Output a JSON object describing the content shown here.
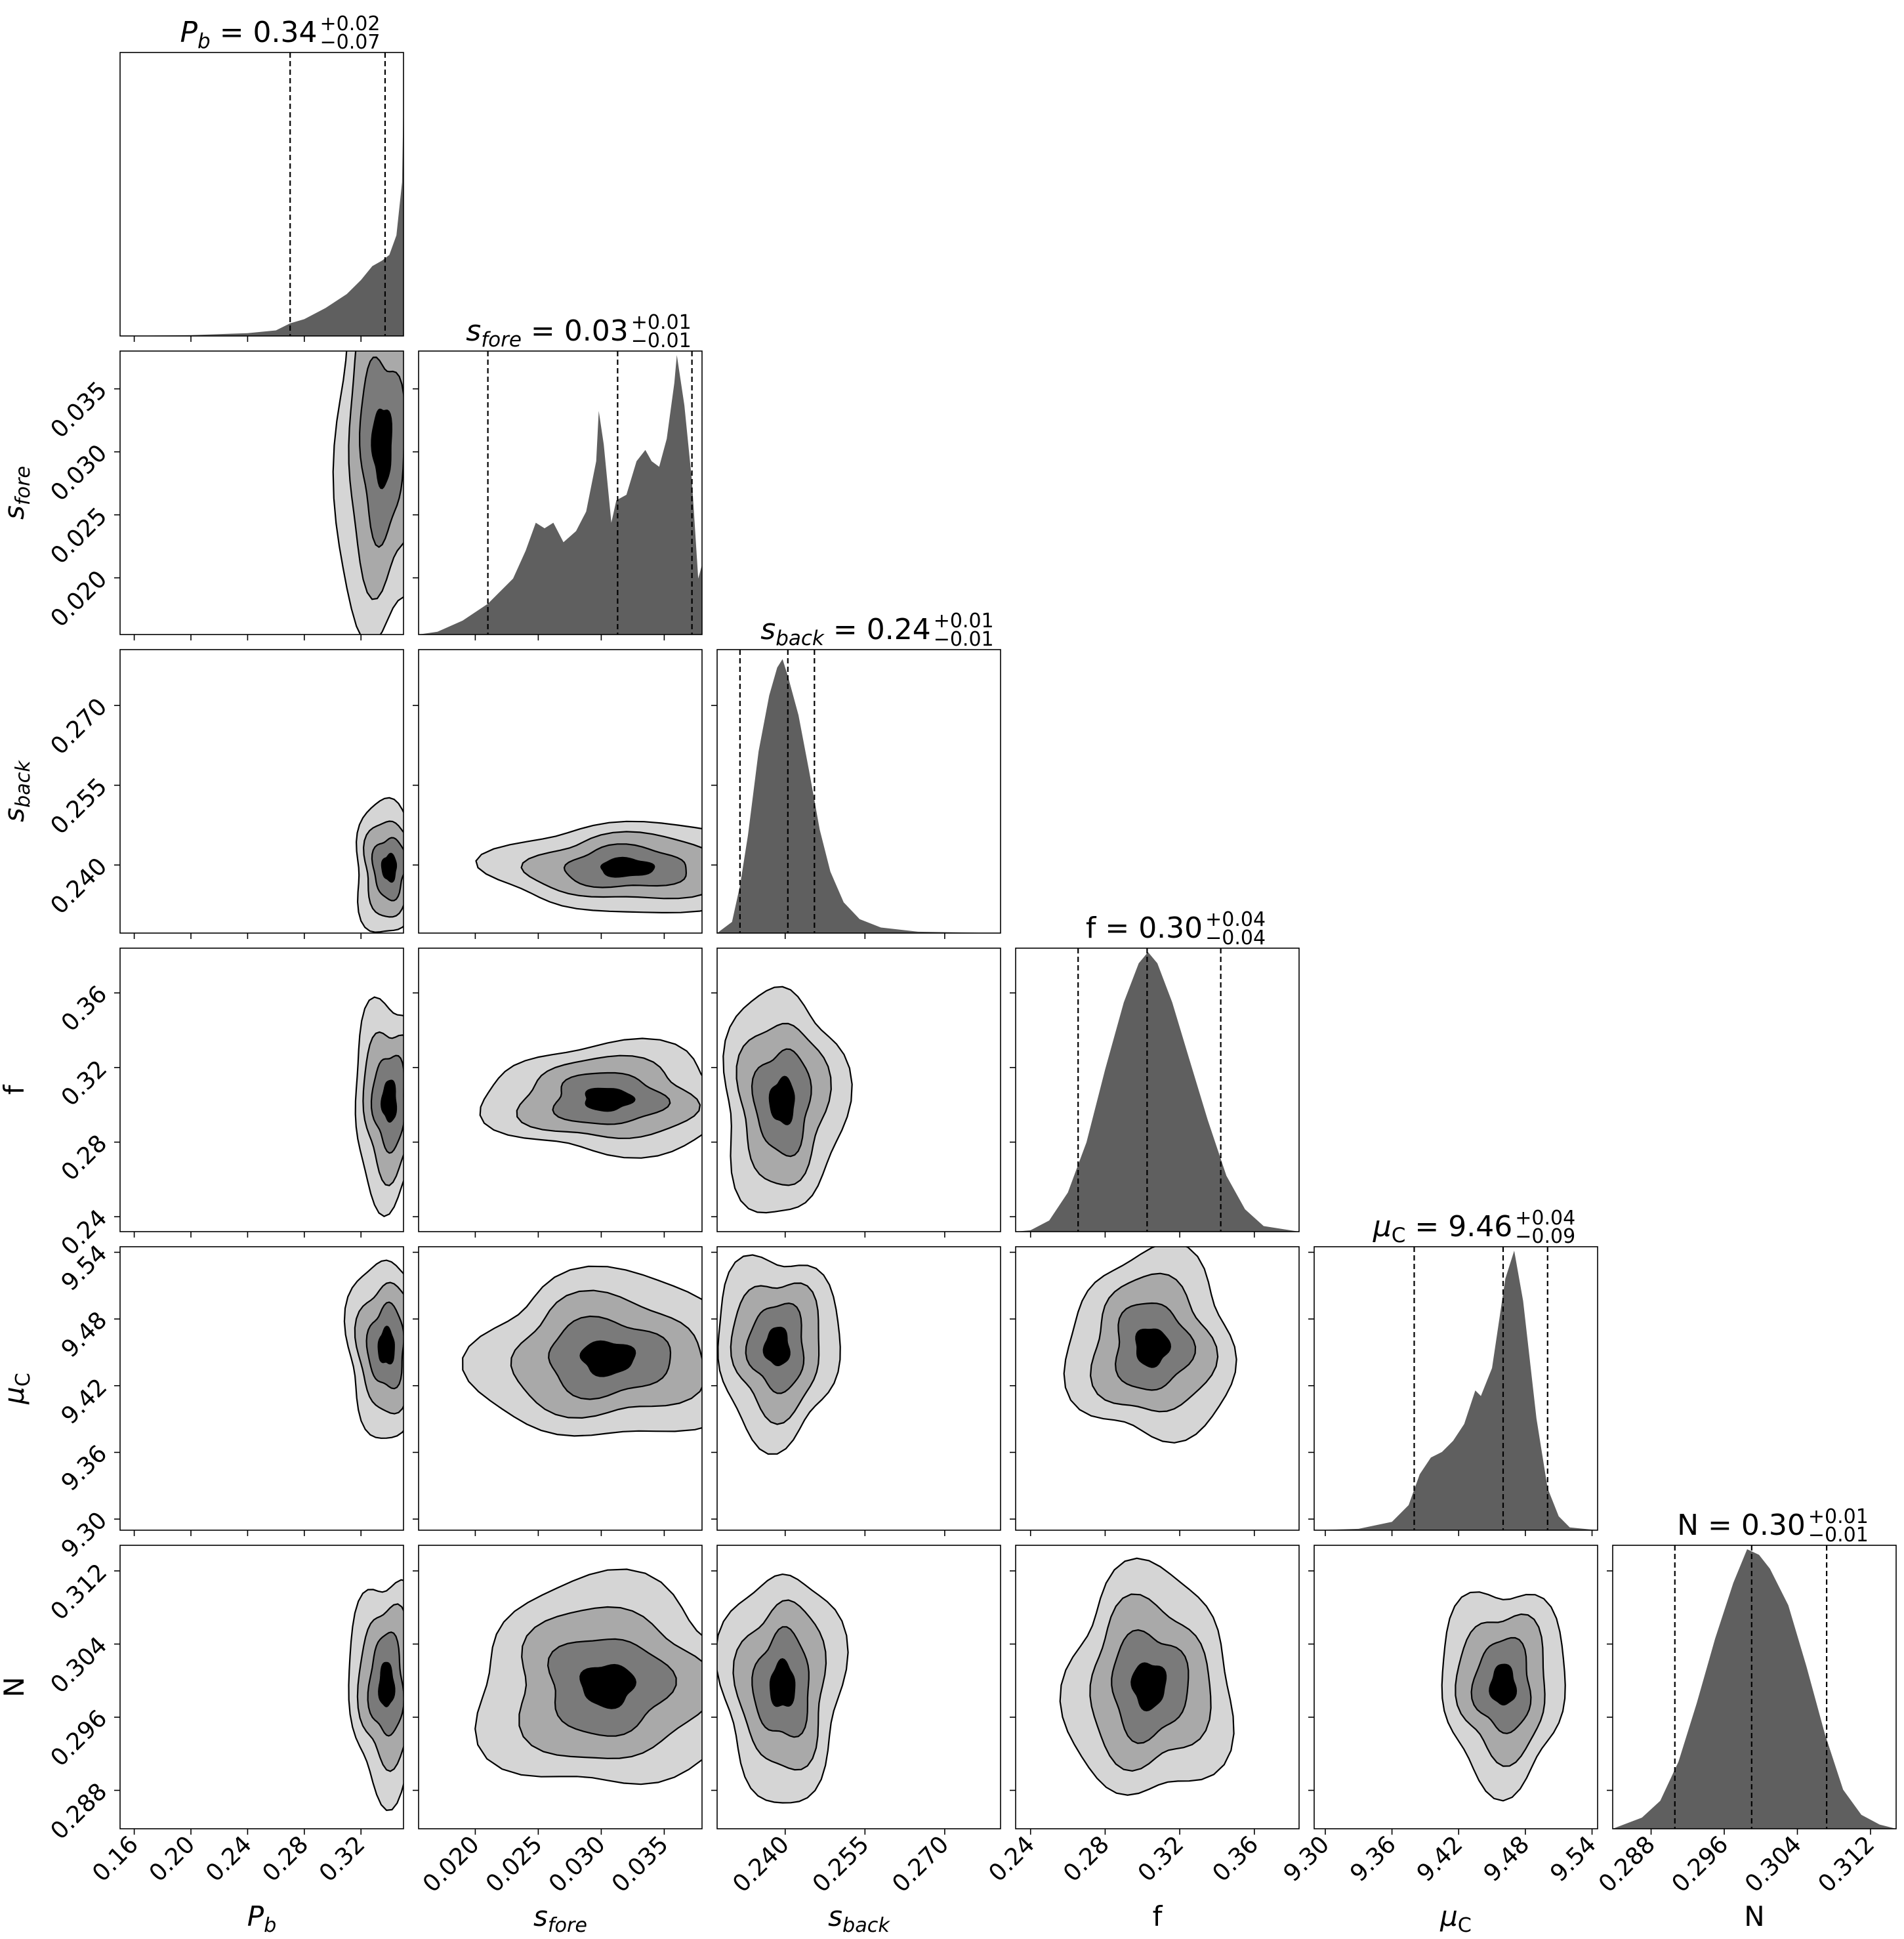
{
  "chart_data": {
    "type": "corner",
    "description_labels": "Posterior corner plot of 6 parameters with 1D marginal histograms on the diagonal and 2D contour densities below.",
    "parameters": [
      {
        "key": "Pb",
        "label_base": "P",
        "label_sub": "b",
        "title_base": "P",
        "title_sub": "b",
        "median": "0.34",
        "plus": "+0.02",
        "minus": "−0.07",
        "range": [
          0.15,
          0.35
        ],
        "ticks": [
          0.16,
          0.2,
          0.24,
          0.28,
          0.32
        ],
        "tick_labels": [
          "0.16",
          "0.20",
          "0.24",
          "0.28",
          "0.32"
        ],
        "quantiles": [
          0.27,
          0.337,
          0.357
        ]
      },
      {
        "key": "sfore",
        "label_base": "s",
        "label_sub": "fore",
        "title_base": "s",
        "title_sub": "fore",
        "median": "0.03",
        "plus": "+0.01",
        "minus": "−0.01",
        "range": [
          0.0155,
          0.038
        ],
        "ticks": [
          0.02,
          0.025,
          0.03,
          0.035
        ],
        "tick_labels": [
          "0.020",
          "0.025",
          "0.030",
          "0.035"
        ],
        "quantiles": [
          0.021,
          0.0313,
          0.0372
        ]
      },
      {
        "key": "sback",
        "label_base": "s",
        "label_sub": "back",
        "title_base": "s",
        "title_sub": "back",
        "median": "0.24",
        "plus": "+0.01",
        "minus": "−0.01",
        "range": [
          0.2272,
          0.2805
        ],
        "ticks": [
          0.24,
          0.255,
          0.27
        ],
        "tick_labels": [
          "0.240",
          "0.255",
          "0.270"
        ],
        "quantiles": [
          0.2315,
          0.2405,
          0.2455
        ]
      },
      {
        "key": "f",
        "label_base": "f",
        "label_sub": "",
        "title_base": "f",
        "title_sub": "",
        "median": "0.30",
        "plus": "+0.04",
        "minus": "−0.04",
        "range": [
          0.232,
          0.384
        ],
        "ticks": [
          0.24,
          0.28,
          0.32,
          0.36
        ],
        "tick_labels": [
          "0.24",
          "0.28",
          "0.32",
          "0.36"
        ],
        "quantiles": [
          0.2655,
          0.3025,
          0.342
        ]
      },
      {
        "key": "muC",
        "label_base": "μ",
        "label_sub": "C",
        "title_base": "μ",
        "title_sub": "C",
        "median": "9.46",
        "plus": "+0.04",
        "minus": "−0.09",
        "range": [
          9.29,
          9.545
        ],
        "ticks": [
          9.3,
          9.36,
          9.42,
          9.48,
          9.54
        ],
        "tick_labels": [
          "9.30",
          "9.36",
          "9.42",
          "9.48",
          "9.54"
        ],
        "quantiles": [
          9.38,
          9.46,
          9.5
        ]
      },
      {
        "key": "N",
        "label_base": "N",
        "label_sub": "",
        "title_base": "N",
        "title_sub": "",
        "median": "0.30",
        "plus": "+0.01",
        "minus": "−0.01",
        "range": [
          0.2838,
          0.3148
        ],
        "ticks": [
          0.288,
          0.296,
          0.304,
          0.312
        ],
        "tick_labels": [
          "0.288",
          "0.296",
          "0.304",
          "0.312"
        ],
        "quantiles": [
          0.2906,
          0.299,
          0.3072
        ]
      }
    ],
    "histograms": {
      "Pb": [
        [
          0.15,
          0
        ],
        [
          0.2,
          0.003
        ],
        [
          0.24,
          0.01
        ],
        [
          0.26,
          0.02
        ],
        [
          0.27,
          0.045
        ],
        [
          0.28,
          0.06
        ],
        [
          0.295,
          0.1
        ],
        [
          0.31,
          0.15
        ],
        [
          0.32,
          0.2
        ],
        [
          0.328,
          0.25
        ],
        [
          0.335,
          0.27
        ],
        [
          0.34,
          0.29
        ],
        [
          0.345,
          0.36
        ],
        [
          0.349,
          0.55
        ],
        [
          0.3505,
          1.0
        ]
      ],
      "sfore": [
        [
          0.0155,
          0
        ],
        [
          0.017,
          0.01
        ],
        [
          0.019,
          0.05
        ],
        [
          0.021,
          0.11
        ],
        [
          0.023,
          0.2
        ],
        [
          0.024,
          0.3
        ],
        [
          0.0248,
          0.4
        ],
        [
          0.0255,
          0.38
        ],
        [
          0.0262,
          0.4
        ],
        [
          0.027,
          0.33
        ],
        [
          0.028,
          0.37
        ],
        [
          0.0288,
          0.44
        ],
        [
          0.0296,
          0.62
        ],
        [
          0.0298,
          0.8
        ],
        [
          0.0302,
          0.68
        ],
        [
          0.0308,
          0.4
        ],
        [
          0.0312,
          0.48
        ],
        [
          0.032,
          0.5
        ],
        [
          0.0328,
          0.62
        ],
        [
          0.0335,
          0.66
        ],
        [
          0.034,
          0.62
        ],
        [
          0.0346,
          0.6
        ],
        [
          0.0352,
          0.7
        ],
        [
          0.0358,
          0.9
        ],
        [
          0.036,
          1.0
        ],
        [
          0.0366,
          0.82
        ],
        [
          0.0372,
          0.55
        ],
        [
          0.0377,
          0.2
        ],
        [
          0.038,
          0.25
        ]
      ],
      "sback": [
        [
          0.2272,
          0
        ],
        [
          0.23,
          0.04
        ],
        [
          0.2315,
          0.17
        ],
        [
          0.233,
          0.35
        ],
        [
          0.235,
          0.65
        ],
        [
          0.237,
          0.85
        ],
        [
          0.2385,
          0.95
        ],
        [
          0.2395,
          0.98
        ],
        [
          0.2405,
          0.92
        ],
        [
          0.2425,
          0.78
        ],
        [
          0.2445,
          0.58
        ],
        [
          0.2465,
          0.37
        ],
        [
          0.2485,
          0.22
        ],
        [
          0.251,
          0.11
        ],
        [
          0.254,
          0.05
        ],
        [
          0.258,
          0.02
        ],
        [
          0.265,
          0.005
        ],
        [
          0.28,
          0
        ]
      ],
      "f": [
        [
          0.232,
          0
        ],
        [
          0.24,
          0.005
        ],
        [
          0.25,
          0.04
        ],
        [
          0.26,
          0.14
        ],
        [
          0.27,
          0.32
        ],
        [
          0.28,
          0.58
        ],
        [
          0.29,
          0.82
        ],
        [
          0.298,
          0.96
        ],
        [
          0.303,
          1.0
        ],
        [
          0.308,
          0.96
        ],
        [
          0.316,
          0.82
        ],
        [
          0.325,
          0.62
        ],
        [
          0.335,
          0.4
        ],
        [
          0.345,
          0.2
        ],
        [
          0.355,
          0.08
        ],
        [
          0.365,
          0.02
        ],
        [
          0.384,
          0
        ]
      ],
      "muC": [
        [
          9.29,
          0
        ],
        [
          9.33,
          0.005
        ],
        [
          9.36,
          0.03
        ],
        [
          9.375,
          0.09
        ],
        [
          9.385,
          0.2
        ],
        [
          9.395,
          0.26
        ],
        [
          9.405,
          0.28
        ],
        [
          9.415,
          0.32
        ],
        [
          9.425,
          0.38
        ],
        [
          9.435,
          0.5
        ],
        [
          9.44,
          0.48
        ],
        [
          9.45,
          0.58
        ],
        [
          9.462,
          0.9
        ],
        [
          9.47,
          1.0
        ],
        [
          9.478,
          0.82
        ],
        [
          9.49,
          0.4
        ],
        [
          9.5,
          0.15
        ],
        [
          9.51,
          0.05
        ],
        [
          9.52,
          0.01
        ],
        [
          9.545,
          0
        ]
      ],
      "N": [
        [
          0.2838,
          0
        ],
        [
          0.287,
          0.04
        ],
        [
          0.289,
          0.1
        ],
        [
          0.291,
          0.24
        ],
        [
          0.293,
          0.45
        ],
        [
          0.295,
          0.68
        ],
        [
          0.297,
          0.88
        ],
        [
          0.2985,
          1.0
        ],
        [
          0.2998,
          0.98
        ],
        [
          0.301,
          0.93
        ],
        [
          0.303,
          0.8
        ],
        [
          0.305,
          0.58
        ],
        [
          0.307,
          0.34
        ],
        [
          0.309,
          0.14
        ],
        [
          0.311,
          0.05
        ],
        [
          0.313,
          0.015
        ],
        [
          0.3148,
          0
        ]
      ]
    },
    "contour_levels": 4,
    "contours": {
      "1-0": [
        0.335,
        0.0305,
        0.034,
        0.0155
      ],
      "2-0": [
        0.34,
        0.2395,
        0.025,
        0.0125
      ],
      "2-1": [
        0.032,
        0.2395,
        0.0105,
        0.0085
      ],
      "3-0": [
        0.34,
        0.302,
        0.025,
        0.055
      ],
      "3-1": [
        0.0305,
        0.303,
        0.0095,
        0.03
      ],
      "3-2": [
        0.2395,
        0.302,
        0.0115,
        0.06
      ],
      "4-0": [
        0.338,
        9.455,
        0.028,
        0.08
      ],
      "4-1": [
        0.0305,
        9.445,
        0.0105,
        0.075
      ],
      "4-2": [
        0.2385,
        9.455,
        0.0115,
        0.085
      ],
      "4-3": [
        0.305,
        9.455,
        0.0445,
        0.085
      ],
      "5-0": [
        0.338,
        0.2995,
        0.026,
        0.012
      ],
      "5-1": [
        0.0305,
        0.2995,
        0.0105,
        0.0115
      ],
      "5-2": [
        0.2395,
        0.2995,
        0.0115,
        0.0125
      ],
      "5-3": [
        0.3035,
        0.2995,
        0.0445,
        0.0125
      ],
      "5-4": [
        9.46,
        0.2995,
        0.0555,
        0.011
      ]
    }
  }
}
